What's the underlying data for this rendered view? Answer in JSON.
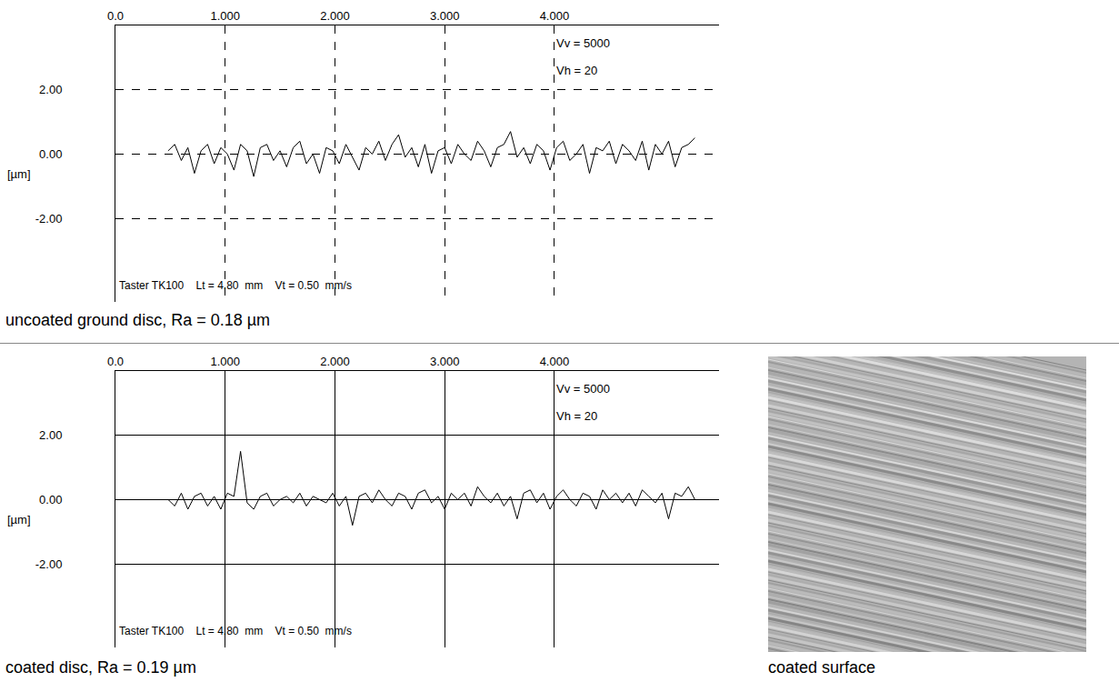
{
  "chart_data": [
    {
      "type": "line",
      "title": "uncoated ground disc, Ra = 0.18 µm",
      "y_label": "[µm]",
      "annotations": [
        "Vv = 5000",
        "Vh = 20",
        "Taster TK100    Lt = 4.80  mm    Vt = 0.50  mm/s"
      ],
      "color": "#000000",
      "grid": true,
      "xlim": [
        0,
        5.5
      ],
      "xticks": [
        {
          "value": 0,
          "label": "0.0"
        },
        {
          "value": 1,
          "label": "1.000"
        },
        {
          "value": 2,
          "label": "2.000"
        },
        {
          "value": 3,
          "label": "3.000"
        },
        {
          "value": 4,
          "label": "4.000"
        }
      ],
      "ylim": [
        -4.6,
        4.0
      ],
      "yticks": [
        {
          "value": 2,
          "label": "2.00"
        },
        {
          "value": 0,
          "label": "0.00"
        },
        {
          "value": -2,
          "label": "-2.00"
        }
      ],
      "x": [
        0.48,
        0.54,
        0.6,
        0.66,
        0.72,
        0.78,
        0.84,
        0.9,
        0.96,
        1.02,
        1.08,
        1.14,
        1.2,
        1.26,
        1.32,
        1.38,
        1.44,
        1.5,
        1.56,
        1.62,
        1.68,
        1.74,
        1.8,
        1.86,
        1.92,
        1.98,
        2.04,
        2.1,
        2.16,
        2.22,
        2.28,
        2.34,
        2.4,
        2.46,
        2.52,
        2.58,
        2.64,
        2.7,
        2.76,
        2.82,
        2.88,
        2.94,
        3.0,
        3.06,
        3.12,
        3.18,
        3.24,
        3.3,
        3.36,
        3.42,
        3.48,
        3.54,
        3.6,
        3.66,
        3.72,
        3.78,
        3.84,
        3.9,
        3.96,
        4.02,
        4.08,
        4.14,
        4.2,
        4.26,
        4.32,
        4.38,
        4.44,
        4.5,
        4.56,
        4.62,
        4.68,
        4.74,
        4.8,
        4.86,
        4.92,
        4.98,
        5.04,
        5.1,
        5.16,
        5.22,
        5.28
      ],
      "values": [
        0.1,
        0.3,
        -0.2,
        0.2,
        -0.6,
        0.1,
        0.3,
        -0.3,
        0.2,
        0.0,
        -0.5,
        0.3,
        0.1,
        -0.7,
        0.2,
        0.3,
        -0.2,
        0.1,
        -0.4,
        0.2,
        0.4,
        -0.3,
        0.0,
        -0.6,
        0.2,
        0.1,
        -0.3,
        0.3,
        -0.1,
        -0.5,
        0.2,
        0.0,
        0.4,
        -0.2,
        0.3,
        0.6,
        -0.1,
        0.2,
        -0.4,
        0.3,
        -0.6,
        0.1,
        0.2,
        -0.3,
        0.3,
        0.0,
        -0.2,
        0.4,
        0.1,
        -0.4,
        0.2,
        0.3,
        0.7,
        -0.1,
        0.2,
        -0.3,
        0.3,
        0.1,
        -0.5,
        0.2,
        0.4,
        -0.2,
        0.0,
        0.3,
        -0.6,
        0.2,
        0.1,
        0.4,
        -0.3,
        0.3,
        0.1,
        -0.2,
        0.4,
        -0.5,
        0.3,
        0.0,
        0.4,
        -0.4,
        0.2,
        0.3,
        0.5
      ]
    },
    {
      "type": "line",
      "title": "coated disc, Ra = 0.19 µm",
      "y_label": "[µm]",
      "annotations": [
        "Vv = 5000",
        "Vh = 20",
        "Taster TK100    Lt = 4.80  mm    Vt = 0.50  mm/s"
      ],
      "color": "#000000",
      "grid": true,
      "xlim": [
        0,
        5.5
      ],
      "xticks": [
        {
          "value": 0,
          "label": "0.0"
        },
        {
          "value": 1,
          "label": "1.000"
        },
        {
          "value": 2,
          "label": "2.000"
        },
        {
          "value": 3,
          "label": "3.000"
        },
        {
          "value": 4,
          "label": "4.000"
        }
      ],
      "ylim": [
        -4.6,
        4.0
      ],
      "yticks": [
        {
          "value": 2,
          "label": "2.00"
        },
        {
          "value": 0,
          "label": "0.00"
        },
        {
          "value": -2,
          "label": "-2.00"
        }
      ],
      "x": [
        0.48,
        0.54,
        0.6,
        0.66,
        0.72,
        0.78,
        0.84,
        0.9,
        0.96,
        1.02,
        1.08,
        1.14,
        1.2,
        1.26,
        1.32,
        1.38,
        1.44,
        1.5,
        1.56,
        1.62,
        1.68,
        1.74,
        1.8,
        1.86,
        1.92,
        1.98,
        2.04,
        2.1,
        2.16,
        2.22,
        2.28,
        2.34,
        2.4,
        2.46,
        2.52,
        2.58,
        2.64,
        2.7,
        2.76,
        2.82,
        2.88,
        2.94,
        3.0,
        3.06,
        3.12,
        3.18,
        3.24,
        3.3,
        3.36,
        3.42,
        3.48,
        3.54,
        3.6,
        3.66,
        3.72,
        3.78,
        3.84,
        3.9,
        3.96,
        4.02,
        4.08,
        4.14,
        4.2,
        4.26,
        4.32,
        4.38,
        4.44,
        4.5,
        4.56,
        4.62,
        4.68,
        4.74,
        4.8,
        4.86,
        4.92,
        4.98,
        5.04,
        5.1,
        5.16,
        5.22,
        5.28
      ],
      "values": [
        0.0,
        -0.2,
        0.2,
        -0.3,
        0.1,
        0.2,
        -0.2,
        0.1,
        -0.3,
        0.2,
        0.1,
        1.5,
        -0.1,
        -0.3,
        0.1,
        0.2,
        -0.2,
        0.0,
        0.1,
        -0.1,
        0.2,
        -0.2,
        0.1,
        0.0,
        -0.1,
        0.2,
        -0.2,
        0.1,
        -0.8,
        0.1,
        0.2,
        -0.1,
        0.3,
        0.0,
        -0.2,
        0.2,
        0.1,
        -0.3,
        0.2,
        0.3,
        -0.1,
        0.1,
        -0.3,
        0.2,
        0.0,
        0.2,
        -0.2,
        0.4,
        0.1,
        -0.1,
        0.2,
        -0.2,
        0.1,
        -0.6,
        0.2,
        0.3,
        -0.1,
        0.2,
        -0.3,
        0.1,
        0.3,
        0.0,
        -0.2,
        0.2,
        0.1,
        -0.3,
        0.3,
        0.0,
        0.2,
        -0.1,
        0.2,
        -0.2,
        0.3,
        0.1,
        -0.1,
        0.2,
        -0.6,
        0.2,
        0.1,
        0.4,
        0.0
      ]
    }
  ],
  "image": {
    "caption": "coated surface"
  }
}
